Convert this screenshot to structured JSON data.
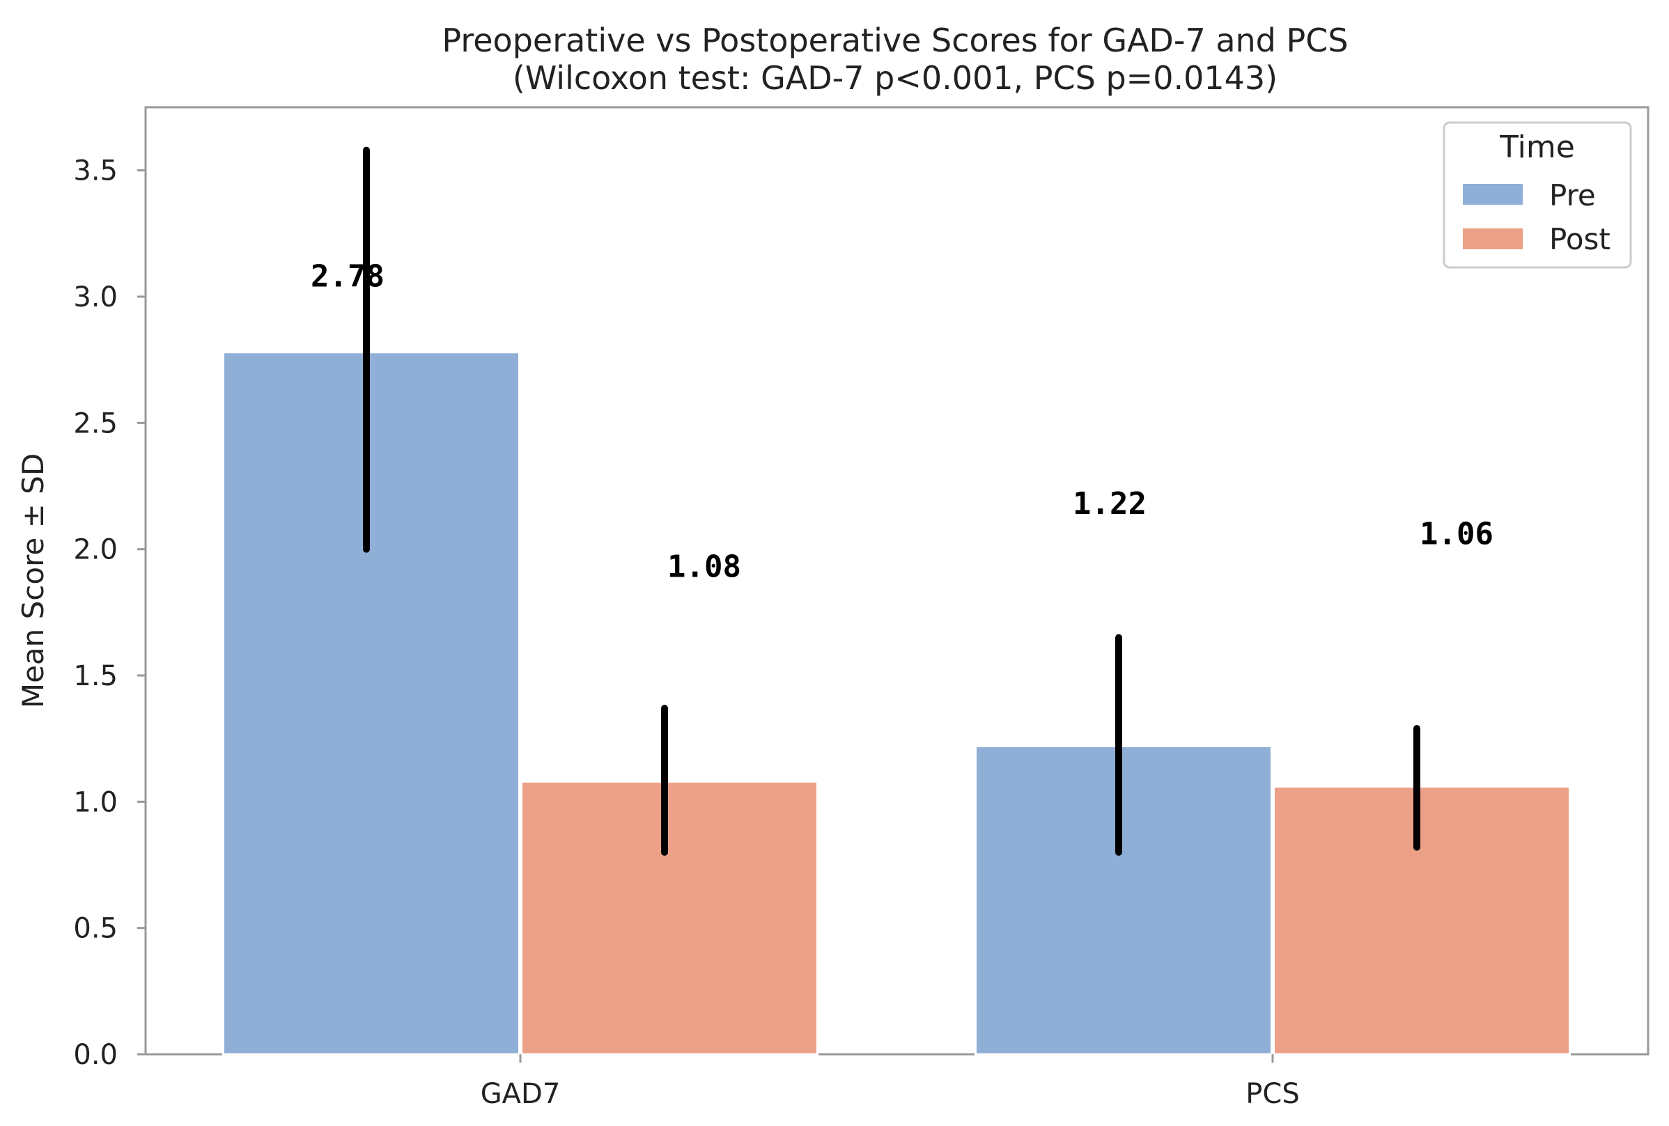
{
  "chart_data": {
    "type": "bar",
    "title": "Preoperative vs Postoperative Scores for GAD-7 and PCS",
    "subtitle": "(Wilcoxon test: GAD-7 p<0.001, PCS p=0.0143)",
    "xlabel": "",
    "ylabel": "Mean Score ± SD",
    "categories": [
      "GAD7",
      "PCS"
    ],
    "ylim": [
      0,
      3.75
    ],
    "yticks": [
      0.0,
      0.5,
      1.0,
      1.5,
      2.0,
      2.5,
      3.0,
      3.5
    ],
    "ytick_labels": [
      "0.0",
      "0.5",
      "1.0",
      "1.5",
      "2.0",
      "2.5",
      "3.0",
      "3.5"
    ],
    "grid": false,
    "legend": {
      "title": "Time",
      "position": "top-right"
    },
    "series": [
      {
        "name": "Pre",
        "color": "#8fafd6",
        "values": [
          2.78,
          1.22
        ],
        "error_low": [
          2.0,
          0.8
        ],
        "error_high": [
          3.58,
          1.65
        ],
        "labels": [
          "2.78",
          "1.22"
        ]
      },
      {
        "name": "Post",
        "color": "#eda088",
        "values": [
          1.08,
          1.06
        ],
        "error_low": [
          0.8,
          0.82
        ],
        "error_high": [
          1.37,
          1.29
        ],
        "labels": [
          "1.08",
          "1.06"
        ]
      }
    ]
  }
}
